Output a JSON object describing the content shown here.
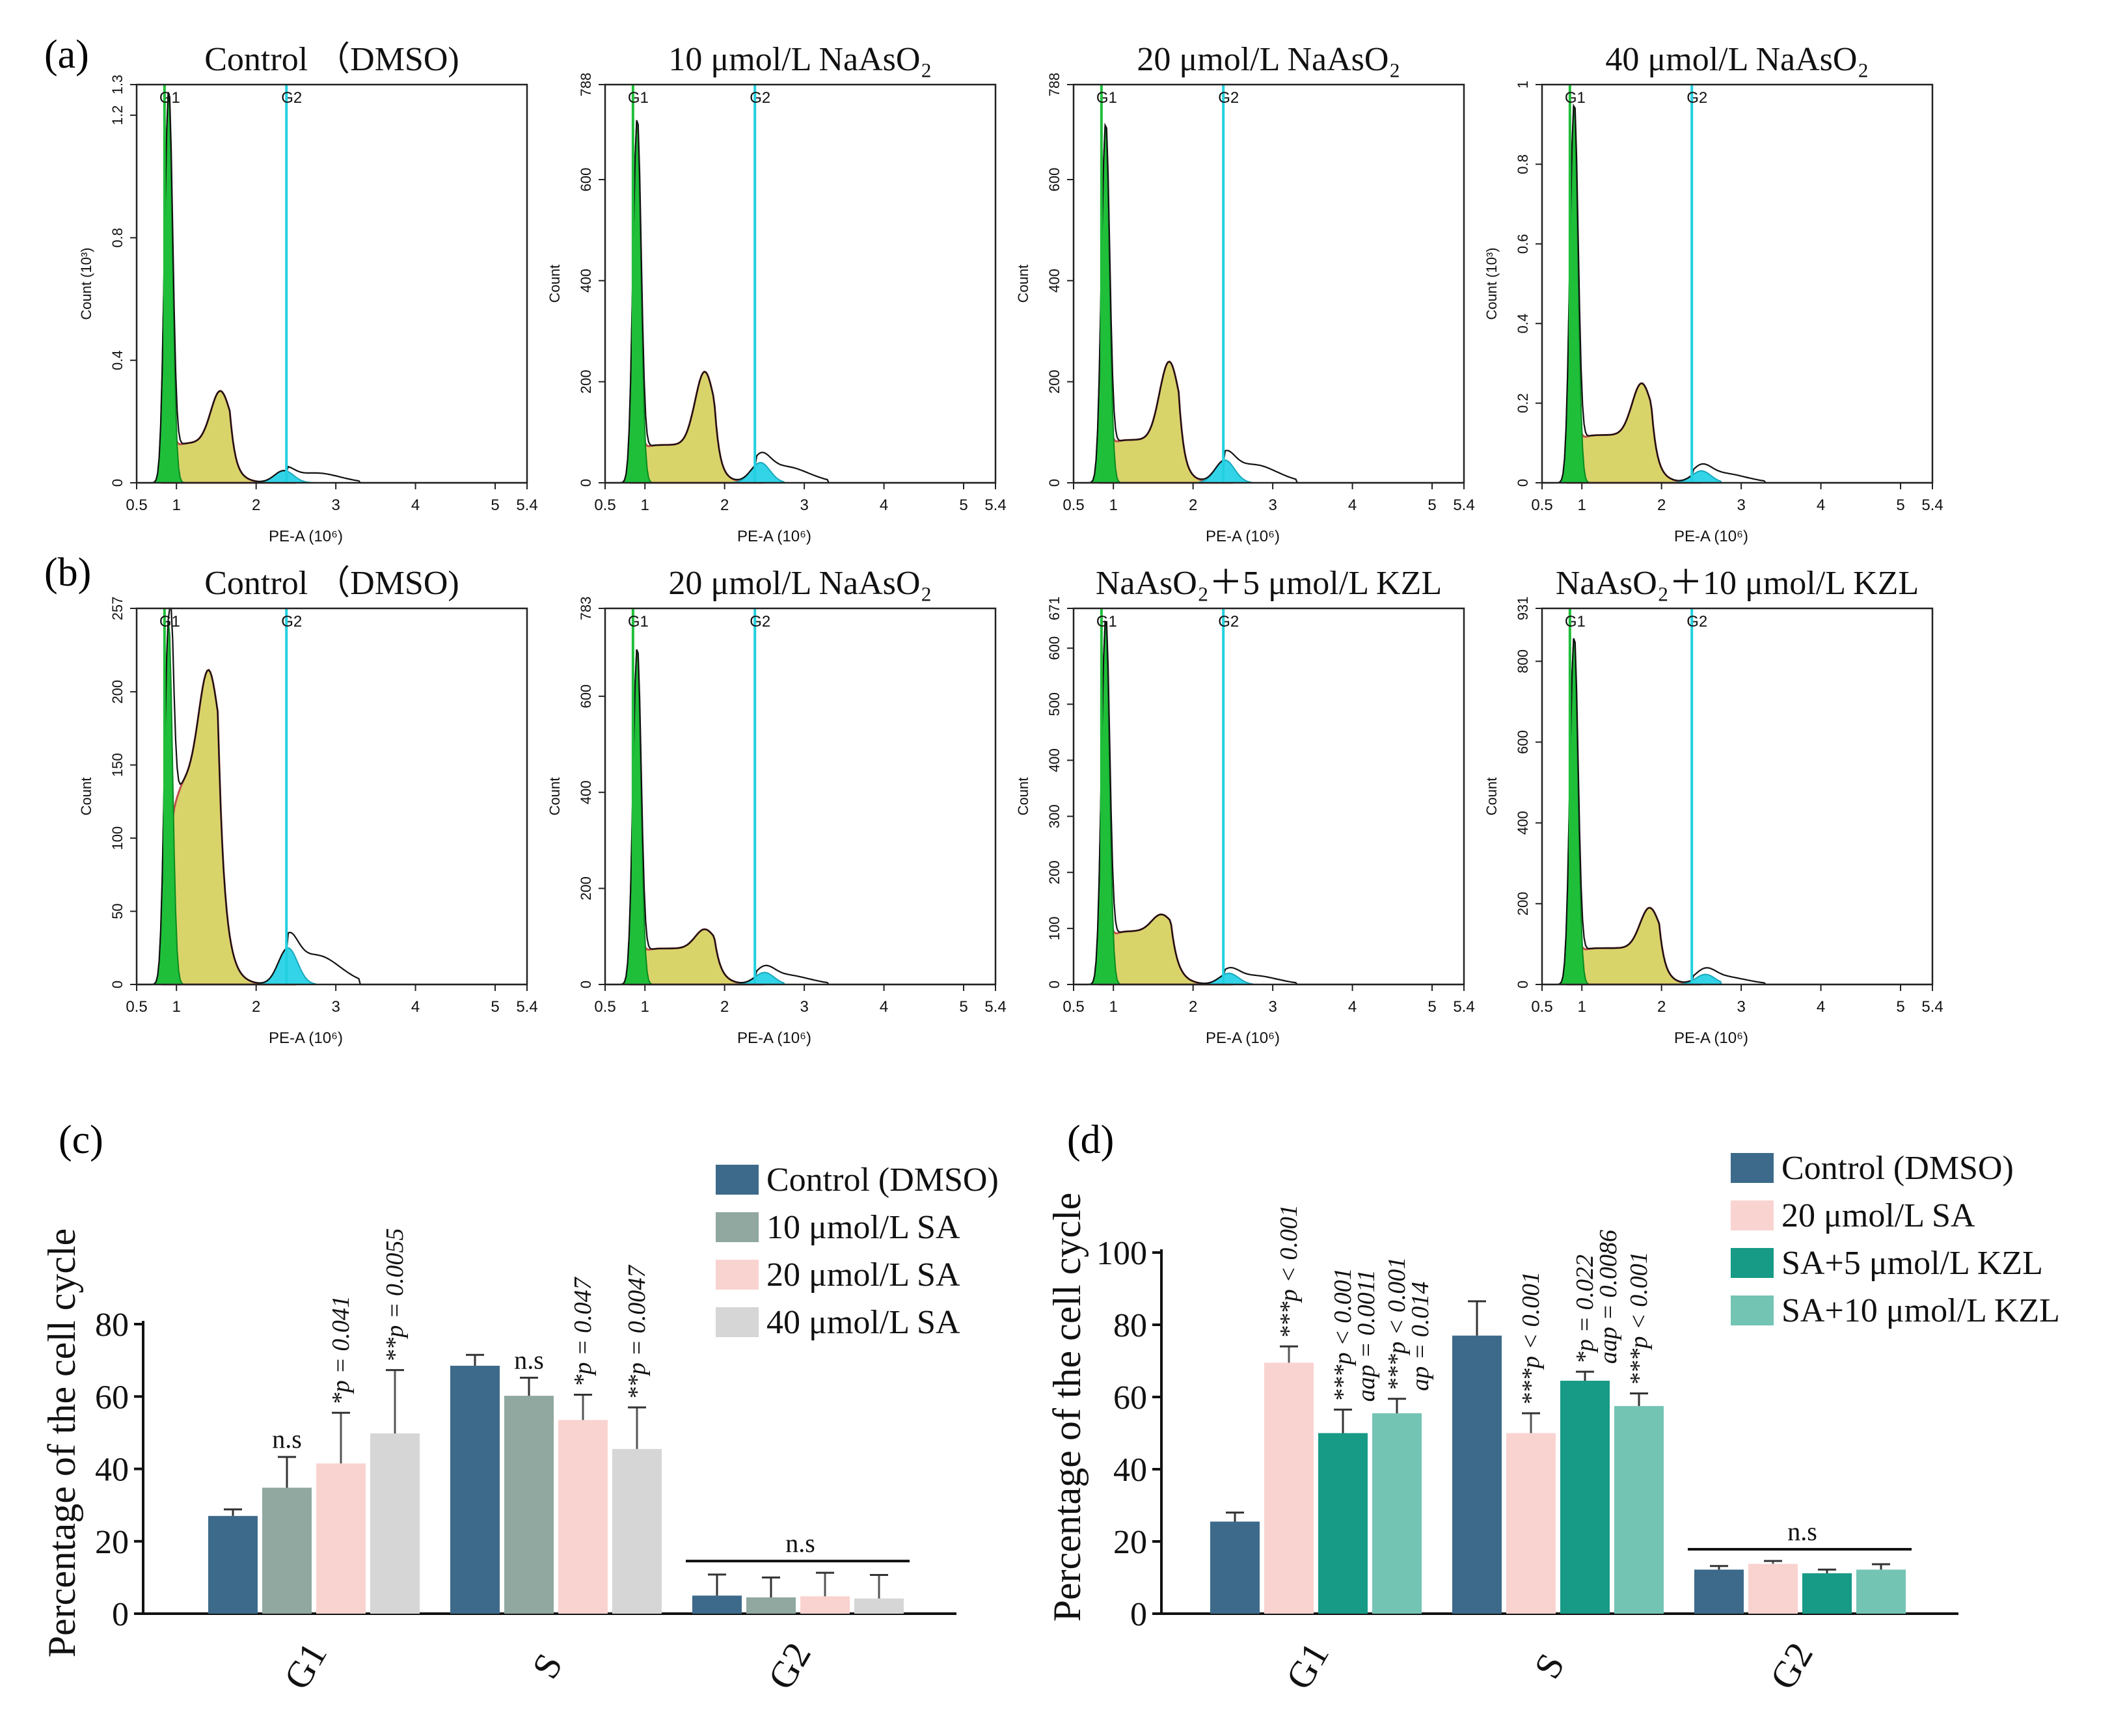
{
  "flow_panels": [
    {
      "panel": "a",
      "plots": [
        {
          "title": "Control （DMSO)",
          "ylabel": "Count (10³)",
          "ymax": 1.3,
          "yticks": [
            "0",
            "0.4",
            "0.8",
            "1.2",
            "1.3"
          ],
          "ytick_values": [
            0,
            0.4,
            0.8,
            1.2,
            1.3
          ],
          "peak_g1": 1.28,
          "s_level": 0.13,
          "s_peak": 0.3,
          "s_peak_x": 1.55,
          "g2_level": 0.04,
          "g2_x": 2.35
        },
        {
          "title": "10 μmol/L NaAsO₂",
          "ylabel": "Count",
          "ymax": 788,
          "yticks": [
            "0",
            "200",
            "400",
            "600",
            "788"
          ],
          "ytick_values": [
            0,
            200,
            400,
            600,
            788
          ],
          "peak_g1": 720,
          "s_level": 75,
          "s_peak": 220,
          "s_peak_x": 1.75,
          "g2_level": 40,
          "g2_x": 2.45
        },
        {
          "title": "20 μmol/L NaAsO₂",
          "ylabel": "Count",
          "ymax": 788,
          "yticks": [
            "0",
            "200",
            "400",
            "600",
            "788"
          ],
          "ytick_values": [
            0,
            200,
            400,
            600,
            788
          ],
          "peak_g1": 710,
          "s_level": 85,
          "s_peak": 240,
          "s_peak_x": 1.7,
          "g2_level": 45,
          "g2_x": 2.4
        },
        {
          "title": "40 μmol/L NaAsO₂",
          "ylabel": "Count (10³)",
          "ymax": 1,
          "yticks": [
            "0",
            "0.2",
            "0.4",
            "0.6",
            "0.8",
            "1"
          ],
          "ytick_values": [
            0,
            0.2,
            0.4,
            0.6,
            0.8,
            1
          ],
          "peak_g1": 0.95,
          "s_level": 0.12,
          "s_peak": 0.25,
          "s_peak_x": 1.75,
          "g2_level": 0.03,
          "g2_x": 2.5
        }
      ]
    },
    {
      "panel": "b",
      "plots": [
        {
          "title": "Control （DMSO)",
          "ylabel": "Count",
          "ymax": 257,
          "yticks": [
            "0",
            "50",
            "100",
            "150",
            "200",
            "257"
          ],
          "ytick_values": [
            0,
            50,
            100,
            150,
            200,
            257
          ],
          "peak_g1": 250,
          "s_level": 140,
          "s_peak": 215,
          "s_peak_x": 1.4,
          "g2_level": 25,
          "g2_x": 2.4
        },
        {
          "title": "20 μmol/L NaAsO₂",
          "ylabel": "Count",
          "ymax": 783,
          "yticks": [
            "0",
            "200",
            "400",
            "600",
            "783"
          ],
          "ytick_values": [
            0,
            200,
            400,
            600,
            783
          ],
          "peak_g1": 700,
          "s_level": 75,
          "s_peak": 115,
          "s_peak_x": 1.75,
          "g2_level": 25,
          "g2_x": 2.5
        },
        {
          "title": "NaAsO₂＋5 μmol/L KZL",
          "ylabel": "Count",
          "ymax": 671,
          "yticks": [
            "0",
            "100",
            "200",
            "300",
            "400",
            "500",
            "600",
            "671"
          ],
          "ytick_values": [
            0,
            100,
            200,
            300,
            400,
            500,
            600,
            671
          ],
          "peak_g1": 650,
          "s_level": 95,
          "s_peak": 125,
          "s_peak_x": 1.6,
          "g2_level": 20,
          "g2_x": 2.45
        },
        {
          "title": "NaAsO₂＋10 μmol/L KZL",
          "ylabel": "Count",
          "ymax": 931,
          "yticks": [
            "0",
            "200",
            "400",
            "600",
            "800",
            "931"
          ],
          "ytick_values": [
            0,
            200,
            400,
            600,
            800,
            931
          ],
          "peak_g1": 860,
          "s_level": 90,
          "s_peak": 190,
          "s_peak_x": 1.85,
          "g2_level": 25,
          "g2_x": 2.55
        }
      ]
    }
  ],
  "flow_axis": {
    "xlabel": "PE-A (10⁶)",
    "xticks": [
      "0.5",
      "1",
      "2",
      "3",
      "4",
      "5",
      "5.4"
    ],
    "xtick_values": [
      0.5,
      1,
      2,
      3,
      4,
      5,
      5.4
    ],
    "gate_g1_label": "G1",
    "gate_g2_label": "G2",
    "gate_g1_x": 0.85,
    "gate_g2_x": 2.38
  },
  "chart_data": [
    {
      "panel": "c",
      "type": "bar",
      "categories": [
        "G1",
        "S",
        "G2"
      ],
      "series": [
        {
          "name": "Control (DMSO)",
          "color": "#3d6a8a",
          "values": [
            27,
            68.5,
            5
          ],
          "errors": [
            1.8,
            3,
            5.8
          ]
        },
        {
          "name": "10 μmol/L SA",
          "color": "#90a89f",
          "values": [
            34.8,
            60.2,
            4.5
          ],
          "errors": [
            8.5,
            5,
            5.5
          ]
        },
        {
          "name": "20 μmol/L SA",
          "color": "#f9d3d0",
          "values": [
            41.5,
            53.5,
            4.8
          ],
          "errors": [
            14,
            7,
            6.5
          ]
        },
        {
          "name": "40 μmol/L SA",
          "color": "#d6d6d6",
          "values": [
            49.8,
            45.5,
            4.2
          ],
          "errors": [
            17.5,
            11.5,
            6.5
          ]
        }
      ],
      "annotations": [
        [
          "n.s",
          "*p = 0.041",
          "**p = 0.0055"
        ],
        [
          "n.s",
          "*p = 0.047",
          "**p = 0.0047"
        ]
      ],
      "g2_annotation": "n.s",
      "ylabel": "Percentage of the cell cycle",
      "ylim": [
        0,
        80
      ],
      "yticks": [
        "0",
        "20",
        "40",
        "60",
        "80"
      ],
      "legend_position": "top-right"
    },
    {
      "panel": "d",
      "type": "bar",
      "categories": [
        "G1",
        "S",
        "G2"
      ],
      "series": [
        {
          "name": "Control (DMSO)",
          "color": "#3d6a8a",
          "values": [
            25.5,
            77,
            12.2
          ],
          "errors": [
            2.5,
            9.5,
            1
          ]
        },
        {
          "name": "20 μmol/L SA",
          "color": "#f9d3d0",
          "values": [
            69.5,
            50,
            13.8
          ],
          "errors": [
            4.5,
            5.5,
            0.8
          ]
        },
        {
          "name": "SA+5 μmol/L KZL",
          "color": "#179a86",
          "values": [
            50,
            64.5,
            11.2
          ],
          "errors": [
            6.5,
            2.5,
            1
          ]
        },
        {
          "name": "SA+10 μmol/L KZL",
          "color": "#74c4b4",
          "values": [
            55.5,
            57.5,
            12.2
          ],
          "errors": [
            4,
            3.5,
            1.5
          ]
        }
      ],
      "annotations": [
        [
          "***p < 0.001",
          "***p < 0.001",
          "aap = 0.0011",
          "***p < 0.001",
          "ap = 0.014"
        ],
        [
          "***p < 0.001",
          "*p = 0.022",
          "aap = 0.0086",
          "***p < 0.001"
        ]
      ],
      "g2_annotation": "n.s",
      "ylabel": "Percentage of the cell cycle",
      "ylim": [
        0,
        100
      ],
      "yticks": [
        "0",
        "20",
        "40",
        "60",
        "80",
        "100"
      ],
      "legend_position": "top-right"
    }
  ],
  "panel_labels": {
    "a": "(a)",
    "b": "(b)",
    "c": "(c)",
    "d": "(d)"
  }
}
